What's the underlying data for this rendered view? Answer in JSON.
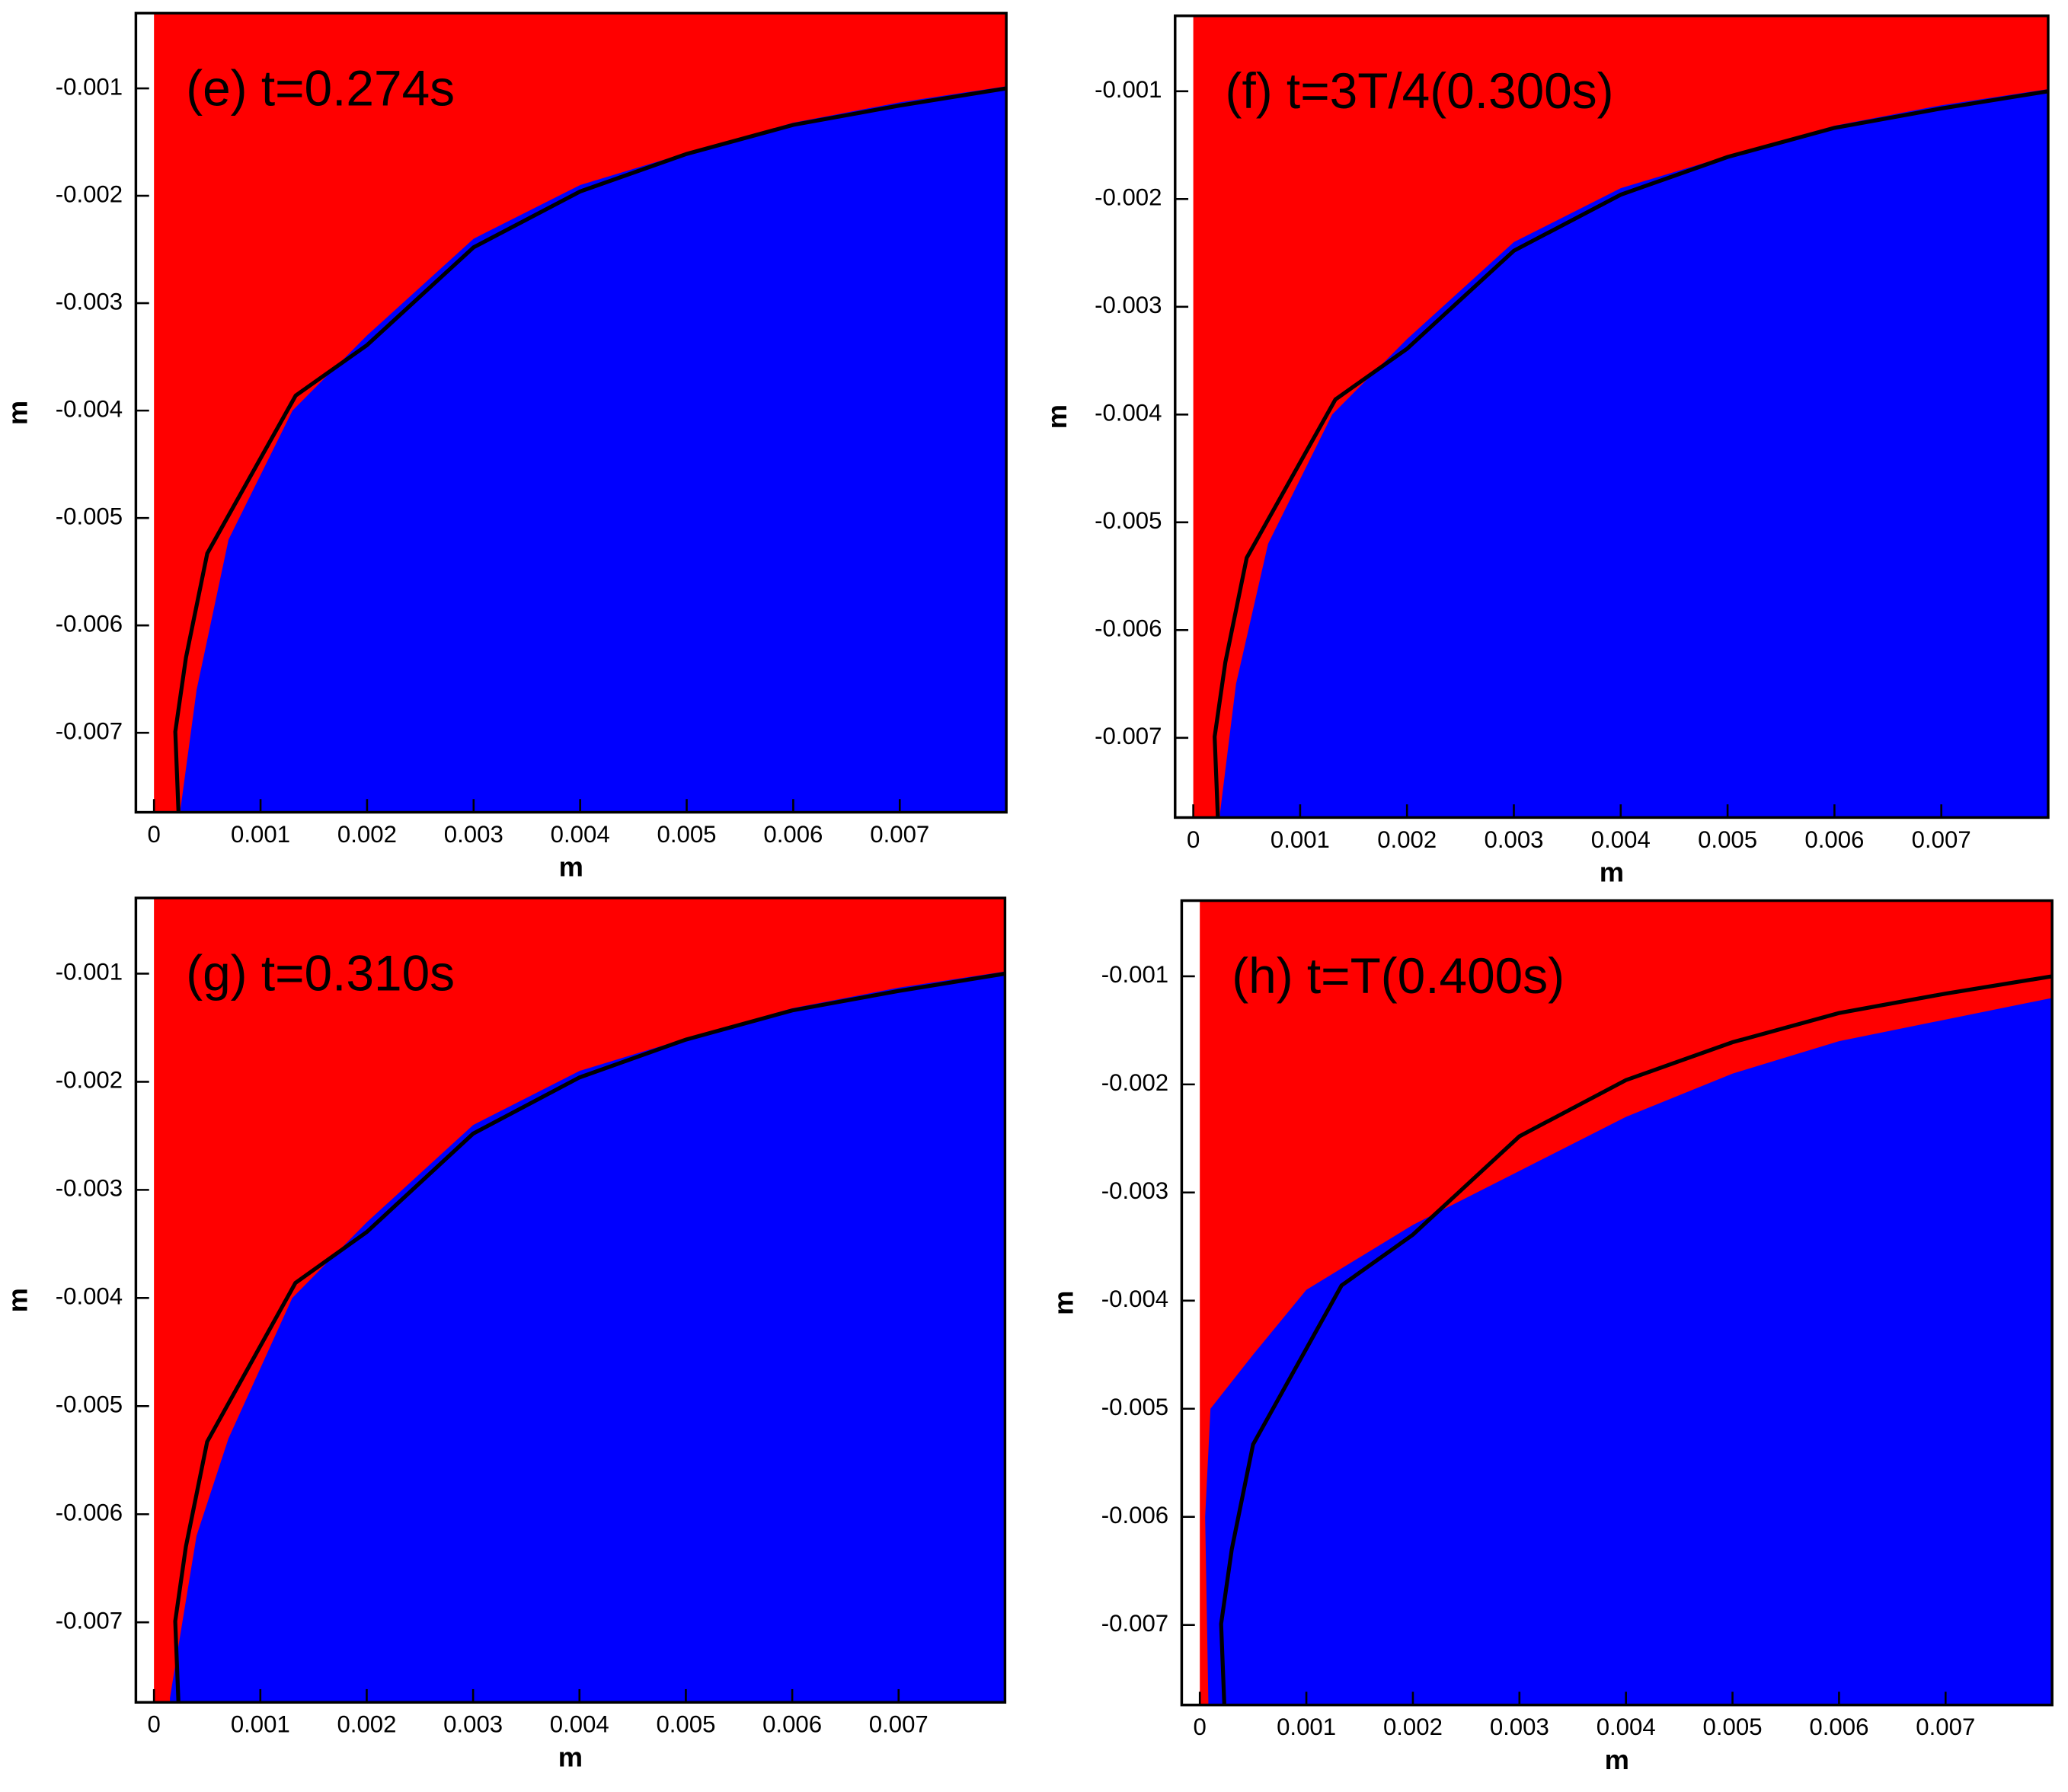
{
  "chart_data": [
    {
      "type": "contour",
      "annotation": "(e)  t=0.274s",
      "xlabel": "m",
      "ylabel": "m",
      "background_color": "#ff0000",
      "xlim": [
        -0.00017,
        0.008
      ],
      "ylim": [
        -0.00774,
        -0.0003
      ],
      "xticks": [
        0,
        0.001,
        0.002,
        0.003,
        0.004,
        0.005,
        0.006,
        0.007
      ],
      "yticks": [
        -0.007,
        -0.006,
        -0.005,
        -0.004,
        -0.003,
        -0.002,
        -0.001
      ],
      "series": [
        {
          "color": "#0000ff",
          "fill": true,
          "x": [
            0.00025,
            0.0004,
            0.0007,
            0.0013,
            0.002,
            0.003,
            0.004,
            0.005,
            0.006,
            0.007,
            0.008
          ],
          "values": [
            -0.0077,
            -0.0066,
            -0.0052,
            -0.004,
            -0.0033,
            -0.0024,
            -0.0019,
            -0.0016,
            -0.00132,
            -0.00113,
            -0.00098
          ]
        },
        {
          "color": "#000000",
          "x": [
            0.00023,
            0.0002,
            0.0003,
            0.0005,
            0.00133,
            0.002,
            0.003,
            0.004,
            0.005,
            0.006,
            0.007,
            0.008
          ],
          "values": [
            -0.00774,
            -0.00699,
            -0.0063,
            -0.00533,
            -0.00386,
            -0.00339,
            -0.00248,
            -0.00196,
            -0.00161,
            -0.00134,
            -0.00116,
            -0.001
          ]
        }
      ]
    },
    {
      "type": "contour",
      "annotation": "(f)  t=3T/4(0.300s)",
      "xlabel": "m",
      "ylabel": "m",
      "background_color": "#ff0000",
      "xlim": [
        -0.00017,
        0.008
      ],
      "ylim": [
        -0.00774,
        -0.0003
      ],
      "xticks": [
        0,
        0.001,
        0.002,
        0.003,
        0.004,
        0.005,
        0.006,
        0.007
      ],
      "yticks": [
        -0.007,
        -0.006,
        -0.005,
        -0.004,
        -0.003,
        -0.002,
        -0.001
      ],
      "series": [
        {
          "color": "#0000ff",
          "fill": true,
          "x": [
            0.00025,
            0.0004,
            0.0007,
            0.0013,
            0.002,
            0.003,
            0.004,
            0.005,
            0.006,
            0.007,
            0.008
          ],
          "values": [
            -0.0077,
            -0.0065,
            -0.0052,
            -0.004,
            -0.0033,
            -0.0024,
            -0.0019,
            -0.0016,
            -0.00132,
            -0.00113,
            -0.00098
          ]
        },
        {
          "color": "#000000",
          "x": [
            0.00023,
            0.0002,
            0.0003,
            0.0005,
            0.00133,
            0.002,
            0.003,
            0.004,
            0.005,
            0.006,
            0.007,
            0.008
          ],
          "values": [
            -0.00774,
            -0.00699,
            -0.0063,
            -0.00533,
            -0.00386,
            -0.00339,
            -0.00248,
            -0.00196,
            -0.00161,
            -0.00134,
            -0.00116,
            -0.001
          ]
        }
      ]
    },
    {
      "type": "contour",
      "annotation": "(g)  t=0.310s",
      "xlabel": "m",
      "ylabel": "m",
      "background_color": "#ff0000",
      "xlim": [
        -0.00017,
        0.008
      ],
      "ylim": [
        -0.00774,
        -0.0003
      ],
      "xticks": [
        0,
        0.001,
        0.002,
        0.003,
        0.004,
        0.005,
        0.006,
        0.007
      ],
      "yticks": [
        -0.007,
        -0.006,
        -0.005,
        -0.004,
        -0.003,
        -0.002,
        -0.001
      ],
      "series": [
        {
          "color": "#0000ff",
          "fill": true,
          "x": [
            0.00015,
            0.00025,
            0.0004,
            0.0007,
            0.0013,
            0.002,
            0.003,
            0.004,
            0.005,
            0.006,
            0.007,
            0.008
          ],
          "values": [
            -0.0077,
            -0.0071,
            -0.0062,
            -0.0053,
            -0.004,
            -0.0033,
            -0.0024,
            -0.0019,
            -0.0016,
            -0.00132,
            -0.00113,
            -0.00098
          ]
        },
        {
          "color": "#000000",
          "x": [
            0.00023,
            0.0002,
            0.0003,
            0.0005,
            0.00133,
            0.002,
            0.003,
            0.004,
            0.005,
            0.006,
            0.007,
            0.008
          ],
          "values": [
            -0.00774,
            -0.00699,
            -0.0063,
            -0.00533,
            -0.00386,
            -0.00339,
            -0.00248,
            -0.00196,
            -0.00161,
            -0.00134,
            -0.00116,
            -0.001
          ]
        }
      ]
    },
    {
      "type": "contour",
      "annotation": "(h)  t=T(0.400s)",
      "xlabel": "m",
      "ylabel": "m",
      "background_color": "#ff0000",
      "xlim": [
        -0.00017,
        0.008
      ],
      "ylim": [
        -0.00774,
        -0.0003
      ],
      "xticks": [
        0,
        0.001,
        0.002,
        0.003,
        0.004,
        0.005,
        0.006,
        0.007
      ],
      "yticks": [
        -0.007,
        -0.006,
        -0.005,
        -0.004,
        -0.003,
        -0.002,
        -0.001
      ],
      "series": [
        {
          "color": "#0000ff",
          "fill": true,
          "x": [
            8e-05,
            5e-05,
            0.0001,
            0.0005,
            0.001,
            0.002,
            0.003,
            0.004,
            0.005,
            0.006,
            0.007,
            0.008
          ],
          "values": [
            -0.0077,
            -0.006,
            -0.005,
            -0.0045,
            -0.0039,
            -0.0033,
            -0.0028,
            -0.0023,
            -0.0019,
            -0.0016,
            -0.0014,
            -0.0012
          ]
        },
        {
          "color": "#000000",
          "x": [
            0.00023,
            0.0002,
            0.0003,
            0.0005,
            0.00133,
            0.002,
            0.003,
            0.004,
            0.005,
            0.006,
            0.007,
            0.008
          ],
          "values": [
            -0.00774,
            -0.00699,
            -0.0063,
            -0.00533,
            -0.00386,
            -0.00339,
            -0.00248,
            -0.00196,
            -0.00161,
            -0.00134,
            -0.00116,
            -0.001
          ]
        }
      ]
    }
  ]
}
